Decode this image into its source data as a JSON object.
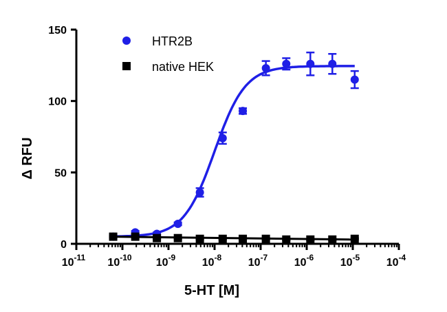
{
  "chart_data": {
    "type": "scatter",
    "x_scale": "log",
    "xlabel": "5-HT [M]",
    "ylabel": "Δ RFU",
    "xlim": [
      1e-11,
      0.0001
    ],
    "ylim": [
      0,
      150
    ],
    "x_ticks": [
      {
        "base": "10",
        "exp": "-11",
        "value": 1e-11
      },
      {
        "base": "10",
        "exp": "-10",
        "value": 1e-10
      },
      {
        "base": "10",
        "exp": "-9",
        "value": 1e-09
      },
      {
        "base": "10",
        "exp": "-8",
        "value": 1e-08
      },
      {
        "base": "10",
        "exp": "-7",
        "value": 1e-07
      },
      {
        "base": "10",
        "exp": "-6",
        "value": 1e-06
      },
      {
        "base": "10",
        "exp": "-5",
        "value": 1e-05
      },
      {
        "base": "10",
        "exp": "-4",
        "value": 0.0001
      }
    ],
    "y_ticks": [
      {
        "label": "0",
        "value": 0
      },
      {
        "label": "50",
        "value": 50
      },
      {
        "label": "100",
        "value": 100
      },
      {
        "label": "150",
        "value": 150
      }
    ],
    "grid": false,
    "legend_position": "top-left",
    "series": [
      {
        "name": "HTR2B",
        "color": "#1f1fe6",
        "marker": "circle",
        "x": [
          6.3e-11,
          1.9e-10,
          5.6e-10,
          1.6e-09,
          4.8e-09,
          1.5e-08,
          4.1e-08,
          1.3e-07,
          3.6e-07,
          1.2e-06,
          3.6e-06,
          1.1e-05
        ],
        "y": [
          5,
          8,
          7,
          14,
          36,
          74,
          93,
          123,
          126,
          126,
          126,
          115
        ],
        "err": [
          1,
          1,
          1,
          1,
          3,
          4,
          2,
          5,
          4,
          8,
          7,
          6
        ],
        "fit": {
          "bottom": 5,
          "top": 124.5,
          "logEC50": -8.0,
          "hill": 1.3
        }
      },
      {
        "name": "native HEK",
        "color": "#000000",
        "marker": "square",
        "x": [
          6.3e-11,
          1.9e-10,
          5.6e-10,
          1.6e-09,
          4.8e-09,
          1.5e-08,
          4.1e-08,
          1.3e-07,
          3.6e-07,
          1.2e-06,
          3.6e-06,
          1.1e-05
        ],
        "y": [
          5,
          5,
          4,
          4,
          3.5,
          3.5,
          3.5,
          3.5,
          3,
          3,
          3,
          3.5
        ],
        "err": [
          0.5,
          0.5,
          0.5,
          0.5,
          0.5,
          0.5,
          0.5,
          0.5,
          0.5,
          0.5,
          0.5,
          0.5
        ],
        "fit": {
          "type": "line",
          "y_start": 5,
          "y_end": 3
        }
      }
    ]
  }
}
